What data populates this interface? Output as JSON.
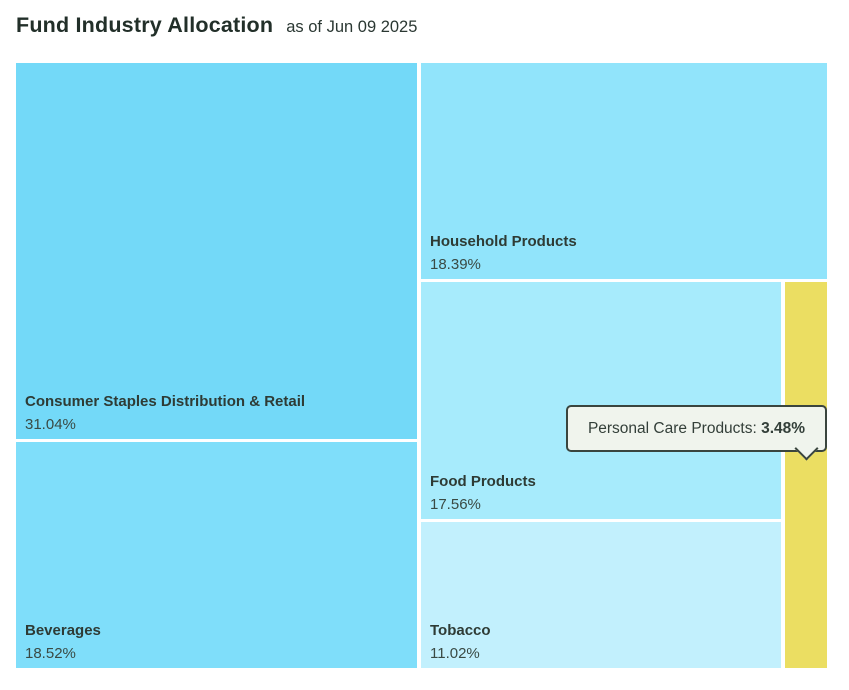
{
  "header": {
    "title": "Fund Industry Allocation",
    "as_of": "as of Jun 09 2025"
  },
  "chart_data": {
    "type": "treemap",
    "title": "Fund Industry Allocation",
    "as_of_date": "Jun 09 2025",
    "unit": "%",
    "layout": "squarified, labels bottom-left, white 3px gaps",
    "series": [
      {
        "name": "Consumer Staples Distribution & Retail",
        "value": 31.04,
        "label": "31.04%",
        "color": "#73d9f8"
      },
      {
        "name": "Beverages",
        "value": 18.52,
        "label": "18.52%",
        "color": "#7fdefa"
      },
      {
        "name": "Household Products",
        "value": 18.39,
        "label": "18.39%",
        "color": "#91e4fb"
      },
      {
        "name": "Food Products",
        "value": 17.56,
        "label": "17.56%",
        "color": "#a7ebfc"
      },
      {
        "name": "Tobacco",
        "value": 11.02,
        "label": "11.02%",
        "color": "#c2f0fd"
      },
      {
        "name": "Personal Care Products",
        "value": 3.48,
        "label": "3.48%",
        "color": "#ebde62",
        "highlighted": true
      }
    ],
    "colors": {
      "highlight": "#ebde62",
      "tooltip_background": "#f0f4ed",
      "tooltip_border": "#3a453e",
      "text": "#2e3b35",
      "gap": "#ffffff"
    }
  },
  "tooltip": {
    "label": "Personal Care Products: ",
    "value": "3.48%"
  }
}
